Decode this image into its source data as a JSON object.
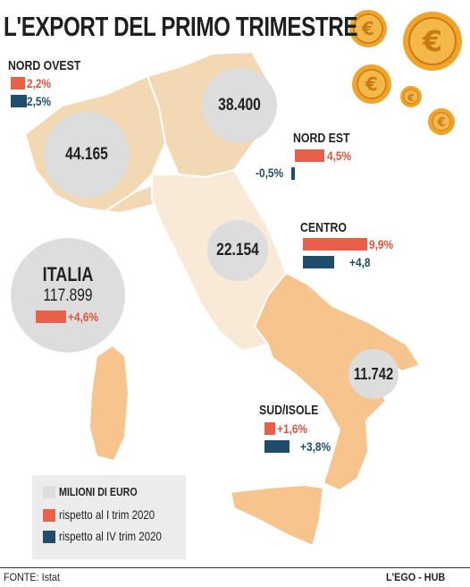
{
  "title": "L'EXPORT DEL PRIMO TRIMESTRE",
  "chart_data": {
    "type": "map",
    "unit_label": "MILIONI DI EURO",
    "series": [
      {
        "name": "rispetto al I trim 2020",
        "color": "#e8604a"
      },
      {
        "name": "rispetto al IV trim 2020",
        "color": "#1f4e6d"
      }
    ],
    "regions": [
      {
        "key": "nord_ovest",
        "name": "NORD OVEST",
        "value": 44165,
        "value_label": "44.165",
        "vs_q1_2020": 2.2,
        "vs_q1_label": "2,2%",
        "vs_q4_2020": 2.5,
        "vs_q4_label": "2,5%"
      },
      {
        "key": "nord_est",
        "name": "NORD EST",
        "value": 38400,
        "value_label": "38.400",
        "vs_q1_2020": 4.5,
        "vs_q1_label": "4,5%",
        "vs_q4_2020": -0.5,
        "vs_q4_label": "-0,5%"
      },
      {
        "key": "centro",
        "name": "CENTRO",
        "value": 22154,
        "value_label": "22.154",
        "vs_q1_2020": 9.9,
        "vs_q1_label": "9,9%",
        "vs_q4_2020": 4.8,
        "vs_q4_label": "+4,8"
      },
      {
        "key": "sud_isole",
        "name": "SUD/ISOLE",
        "value": 11742,
        "value_label": "11.742",
        "vs_q1_2020": 1.6,
        "vs_q1_label": "+1,6%",
        "vs_q4_2020": 3.8,
        "vs_q4_label": "+3,8%"
      }
    ],
    "total": {
      "name": "ITALIA",
      "value": 117899,
      "value_label": "117.899",
      "vs_q1_2020": 4.6,
      "vs_q1_label": "+4,6%"
    }
  },
  "footer": {
    "source": "FONTE:  Istat",
    "brand": "L'EGO - HUB"
  },
  "colors": {
    "map_light": "#f8ead6",
    "map_mid": "#f3d9b3",
    "map_strong": "#f6c48c",
    "bubble": "#dddddd",
    "coin": "#f0a52a",
    "coin_dark": "#c97a12"
  },
  "icons": [
    "euro-coin-icon"
  ]
}
